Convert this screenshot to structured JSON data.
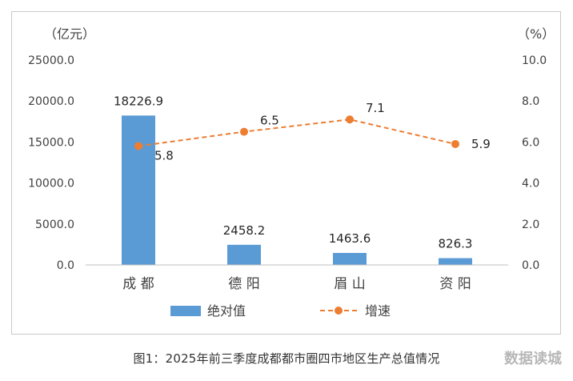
{
  "chart_data": {
    "type": "bar+line",
    "categories": [
      "成 都",
      "德 阳",
      "眉 山",
      "资 阳"
    ],
    "series": [
      {
        "name": "绝对值",
        "type": "bar",
        "axis": "left",
        "values": [
          18226.9,
          2458.2,
          1463.6,
          826.3
        ],
        "labels": [
          "18226.9",
          "2458.2",
          "1463.6",
          "826.3"
        ]
      },
      {
        "name": "增速",
        "type": "line",
        "axis": "right",
        "values": [
          5.8,
          6.5,
          7.1,
          5.9
        ],
        "labels": [
          "5.8",
          "6.5",
          "7.1",
          "5.9"
        ]
      }
    ],
    "y_left": {
      "unit": "（亿元）",
      "ylim": [
        0,
        25000
      ],
      "ticks": [
        "0.0",
        "5000.0",
        "10000.0",
        "15000.0",
        "20000.0",
        "25000.0"
      ]
    },
    "y_right": {
      "unit": "（%）",
      "ylim": [
        0,
        10
      ],
      "ticks": [
        "0.0",
        "2.0",
        "4.0",
        "6.0",
        "8.0",
        "10.0"
      ]
    },
    "grid": false,
    "legend_position": "bottom",
    "colors": {
      "bar": "#5b9bd5",
      "line": "#ed7d31"
    }
  },
  "caption": "图1：2025年前三季度成都都市圈四市地区生产总值情况",
  "watermark": "数据读城"
}
